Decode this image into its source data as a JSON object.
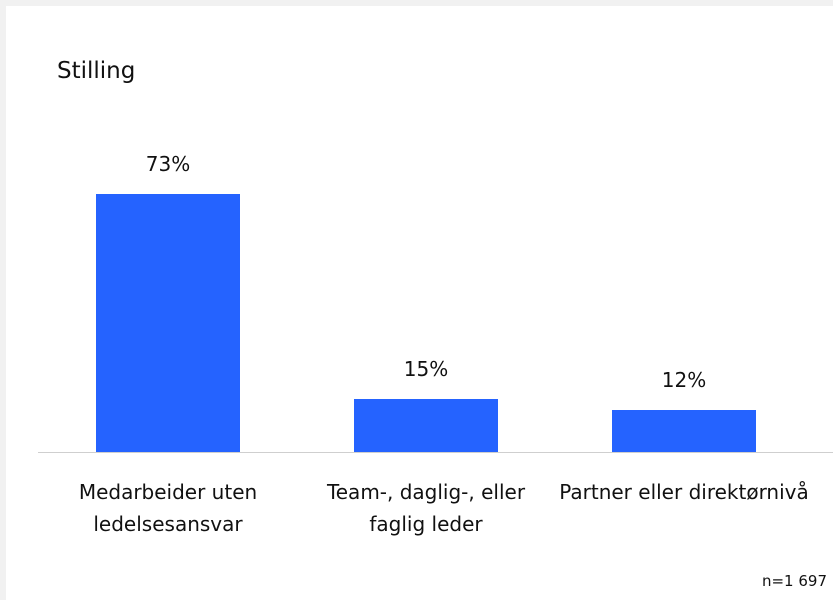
{
  "chart_data": {
    "type": "bar",
    "title": "Stilling",
    "categories": [
      "Medarbeider uten ledelsesansvar",
      "Team-, daglig-, eller faglig leder",
      "Partner eller direktørnivå"
    ],
    "values": [
      73,
      15,
      12
    ],
    "value_labels": [
      "73%",
      "15%",
      "12%"
    ],
    "color": "#2563ff",
    "note": "n=1 697"
  }
}
